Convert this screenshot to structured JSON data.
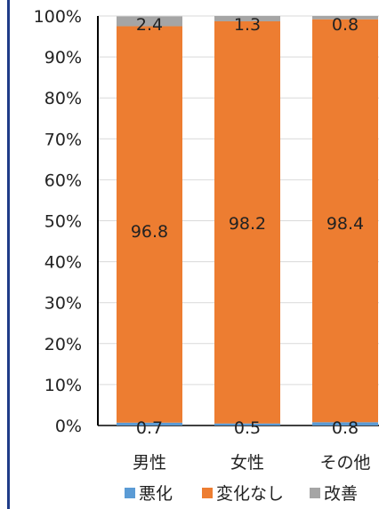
{
  "chart_data": {
    "type": "bar",
    "stacked": true,
    "percent": true,
    "categories": [
      "男性",
      "女性",
      "その他"
    ],
    "series": [
      {
        "name": "悪化",
        "values": [
          0.7,
          0.5,
          0.8
        ],
        "color": "#5b9bd5"
      },
      {
        "name": "変化なし",
        "values": [
          96.8,
          98.2,
          98.4
        ],
        "color": "#ed7d31"
      },
      {
        "name": "改善",
        "values": [
          2.4,
          1.3,
          0.8
        ],
        "color": "#a5a5a5"
      }
    ],
    "data_labels": {
      "悪化": [
        "0.7",
        "0.5",
        "0.8"
      ],
      "変化なし": [
        "96.8",
        "98.2",
        "98.4"
      ],
      "改善": [
        "2.4",
        "1.3",
        "0.8"
      ]
    },
    "y_ticks": [
      "0%",
      "10%",
      "20%",
      "30%",
      "40%",
      "50%",
      "60%",
      "70%",
      "80%",
      "90%",
      "100%"
    ],
    "ylim": [
      0,
      100
    ],
    "grid": true,
    "legend": "bottom",
    "frame_color": "#1f3c88"
  }
}
